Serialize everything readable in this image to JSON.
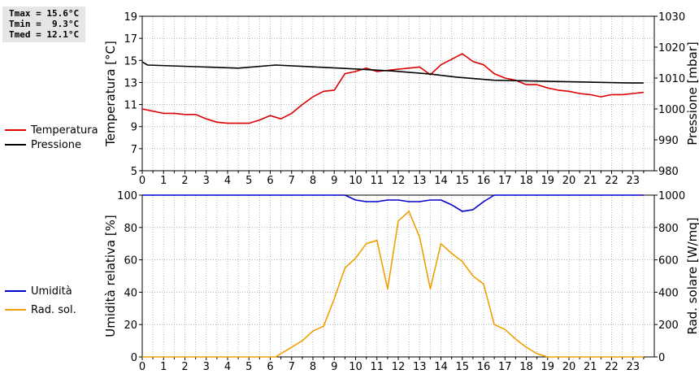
{
  "stats": {
    "tmax": "Tmax = 15.6°C",
    "tmin": "Tmin =  9.3°C",
    "tmed": "Tmed = 12.1°C"
  },
  "legend": {
    "temperature": "Temperatura",
    "pressure": "Pressione",
    "humidity": "Umidità",
    "solar": "Rad. sol."
  },
  "colors": {
    "temperature": "#dd0000",
    "pressure": "#000000",
    "humidity": "#0000cc",
    "solar": "#f0a000",
    "grid": "#b4b4b4"
  },
  "chart_data": [
    {
      "type": "line",
      "x_ticks": [
        "0",
        "1",
        "2",
        "3",
        "4",
        "5",
        "6",
        "7",
        "8",
        "9",
        "10",
        "11",
        "12",
        "13",
        "14",
        "15",
        "16",
        "17",
        "18",
        "19",
        "20",
        "21",
        "22",
        "23"
      ],
      "xlim": [
        0,
        24
      ],
      "ylabel": "Temperatura [°C]",
      "y2label": "Pressione [mbar]",
      "ylim": [
        5,
        19
      ],
      "y_ticks": [
        "5",
        "7",
        "9",
        "11",
        "13",
        "15",
        "17",
        "19"
      ],
      "y2lim": [
        980,
        1030
      ],
      "y2_ticks": [
        "980",
        "990",
        "1000",
        "1010",
        "1020",
        "1030"
      ],
      "grid": true,
      "series": [
        {
          "name": "Temperatura",
          "axis": "left",
          "x": [
            0,
            0.5,
            1,
            1.5,
            2,
            2.5,
            3,
            3.5,
            4,
            4.5,
            5,
            5.5,
            6,
            6.5,
            7,
            7.5,
            8,
            8.5,
            9,
            9.5,
            10,
            10.5,
            11,
            11.5,
            12,
            12.5,
            13,
            13.5,
            14,
            14.5,
            15,
            15.5,
            16,
            16.5,
            17,
            17.5,
            18,
            18.5,
            19,
            19.5,
            20,
            20.5,
            21,
            21.5,
            22,
            22.5,
            23,
            23.5
          ],
          "values": [
            10.6,
            10.4,
            10.2,
            10.2,
            10.1,
            10.1,
            9.7,
            9.4,
            9.3,
            9.3,
            9.3,
            9.6,
            10.0,
            9.7,
            10.2,
            11.0,
            11.7,
            12.2,
            12.3,
            13.8,
            14.0,
            14.3,
            14.0,
            14.1,
            14.2,
            14.3,
            14.4,
            13.7,
            14.6,
            15.1,
            15.6,
            14.9,
            14.6,
            13.8,
            13.4,
            13.2,
            12.8,
            12.8,
            12.5,
            12.3,
            12.2,
            12.0,
            11.9,
            11.7,
            11.9,
            11.9,
            12.0,
            12.1
          ]
        },
        {
          "name": "Pressione",
          "axis": "right",
          "x": [
            0,
            0.25,
            4.5,
            6.25,
            9.25,
            11.75,
            13.5,
            14.75,
            16.5,
            23,
            23.5
          ],
          "values": [
            1015.2,
            1014.2,
            1013.2,
            1014.2,
            1013.2,
            1012.3,
            1011.3,
            1010.3,
            1009.3,
            1008.4,
            1008.4
          ]
        }
      ]
    },
    {
      "type": "line",
      "x_ticks": [
        "0",
        "1",
        "2",
        "3",
        "4",
        "5",
        "6",
        "7",
        "8",
        "9",
        "10",
        "11",
        "12",
        "13",
        "14",
        "15",
        "16",
        "17",
        "18",
        "19",
        "20",
        "21",
        "22",
        "23"
      ],
      "xlim": [
        0,
        24
      ],
      "ylabel": "Umidità relativa [%]",
      "y2label": "Rad. solare [W/mq]",
      "ylim": [
        0,
        100
      ],
      "y_ticks": [
        "0",
        "20",
        "40",
        "60",
        "80",
        "100"
      ],
      "y2lim": [
        0,
        1000
      ],
      "y2_ticks": [
        "0",
        "200",
        "400",
        "600",
        "800",
        "1000"
      ],
      "grid": true,
      "series": [
        {
          "name": "Umidità",
          "axis": "left",
          "x": [
            0,
            9.5,
            10,
            10.5,
            11,
            11.5,
            12,
            12.5,
            13,
            13.5,
            14,
            14.5,
            15,
            15.5,
            16,
            16.5,
            17,
            23.5
          ],
          "values": [
            100,
            100,
            97,
            96,
            96,
            97,
            97,
            96,
            96,
            97,
            97,
            94,
            90,
            91,
            96,
            100,
            100,
            100
          ]
        },
        {
          "name": "Rad. sol.",
          "axis": "right",
          "x": [
            0,
            6.25,
            6.5,
            7,
            7.5,
            8,
            8.5,
            9,
            9.5,
            10,
            10.5,
            11,
            11.5,
            12,
            12.5,
            13,
            13.5,
            14,
            14.5,
            15,
            15.5,
            16,
            16.5,
            17,
            17.5,
            18,
            18.5,
            19,
            23.5
          ],
          "values": [
            0,
            0,
            20,
            60,
            100,
            160,
            190,
            360,
            550,
            610,
            700,
            720,
            420,
            840,
            900,
            740,
            420,
            700,
            640,
            590,
            500,
            450,
            200,
            170,
            110,
            60,
            20,
            0,
            0
          ]
        }
      ]
    }
  ]
}
